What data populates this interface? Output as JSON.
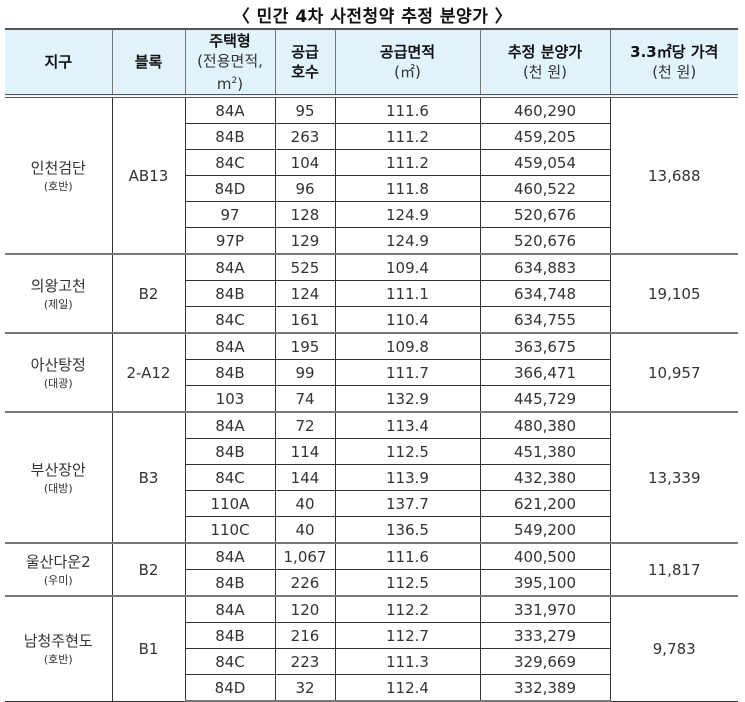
{
  "title": "〈 민간 4차 사전청약 추정 분양가 〉",
  "headers": {
    "district": "지구",
    "block": "블록",
    "housing_type": "주택형",
    "housing_type_sub": "(전용면적,",
    "housing_type_unit": "m",
    "housing_type_sup": "2",
    "supply_units": "공급",
    "supply_units_2": "호수",
    "supply_area": "공급면적",
    "supply_area_unit": "(㎡)",
    "est_price": "추정 분양가",
    "est_price_unit": "(천 원)",
    "price_per": "3.3㎡당 가격",
    "price_per_unit": "(천 원)"
  },
  "groups": [
    {
      "district": "인천검단",
      "builder": "(호반)",
      "block": "AB13",
      "price_per_33": "13,688",
      "rows": [
        {
          "type": "84A",
          "units": "95",
          "area": "111.6",
          "price": "460,290"
        },
        {
          "type": "84B",
          "units": "263",
          "area": "111.2",
          "price": "459,205"
        },
        {
          "type": "84C",
          "units": "104",
          "area": "111.2",
          "price": "459,054"
        },
        {
          "type": "84D",
          "units": "96",
          "area": "111.8",
          "price": "460,522"
        },
        {
          "type": "97",
          "units": "128",
          "area": "124.9",
          "price": "520,676"
        },
        {
          "type": "97P",
          "units": "129",
          "area": "124.9",
          "price": "520,676"
        }
      ]
    },
    {
      "district": "의왕고천",
      "builder": "(제일)",
      "block": "B2",
      "price_per_33": "19,105",
      "rows": [
        {
          "type": "84A",
          "units": "525",
          "area": "109.4",
          "price": "634,883"
        },
        {
          "type": "84B",
          "units": "124",
          "area": "111.1",
          "price": "634,748"
        },
        {
          "type": "84C",
          "units": "161",
          "area": "110.4",
          "price": "634,755"
        }
      ]
    },
    {
      "district": "아산탕정",
      "builder": "(대광)",
      "block": "2-A12",
      "price_per_33": "10,957",
      "rows": [
        {
          "type": "84A",
          "units": "195",
          "area": "109.8",
          "price": "363,675"
        },
        {
          "type": "84B",
          "units": "99",
          "area": "111.7",
          "price": "366,471"
        },
        {
          "type": "103",
          "units": "74",
          "area": "132.9",
          "price": "445,729"
        }
      ]
    },
    {
      "district": "부산장안",
      "builder": "(대방)",
      "block": "B3",
      "price_per_33": "13,339",
      "rows": [
        {
          "type": "84A",
          "units": "72",
          "area": "113.4",
          "price": "480,380"
        },
        {
          "type": "84B",
          "units": "114",
          "area": "112.5",
          "price": "451,380"
        },
        {
          "type": "84C",
          "units": "144",
          "area": "113.9",
          "price": "432,380"
        },
        {
          "type": "110A",
          "units": "40",
          "area": "137.7",
          "price": "621,200"
        },
        {
          "type": "110C",
          "units": "40",
          "area": "136.5",
          "price": "549,200"
        }
      ]
    },
    {
      "district": "울산다운2",
      "builder": "(우미)",
      "block": "B2",
      "price_per_33": "11,817",
      "rows": [
        {
          "type": "84A",
          "units": "1,067",
          "area": "111.6",
          "price": "400,500"
        },
        {
          "type": "84B",
          "units": "226",
          "area": "112.5",
          "price": "395,100"
        }
      ]
    },
    {
      "district": "남청주현도",
      "builder": "(호반)",
      "block": "B1",
      "price_per_33": "9,783",
      "rows": [
        {
          "type": "84A",
          "units": "120",
          "area": "112.2",
          "price": "331,970"
        },
        {
          "type": "84B",
          "units": "216",
          "area": "112.7",
          "price": "333,279"
        },
        {
          "type": "84C",
          "units": "223",
          "area": "111.3",
          "price": "329,669"
        },
        {
          "type": "84D",
          "units": "32",
          "area": "112.4",
          "price": "332,389"
        }
      ]
    }
  ]
}
